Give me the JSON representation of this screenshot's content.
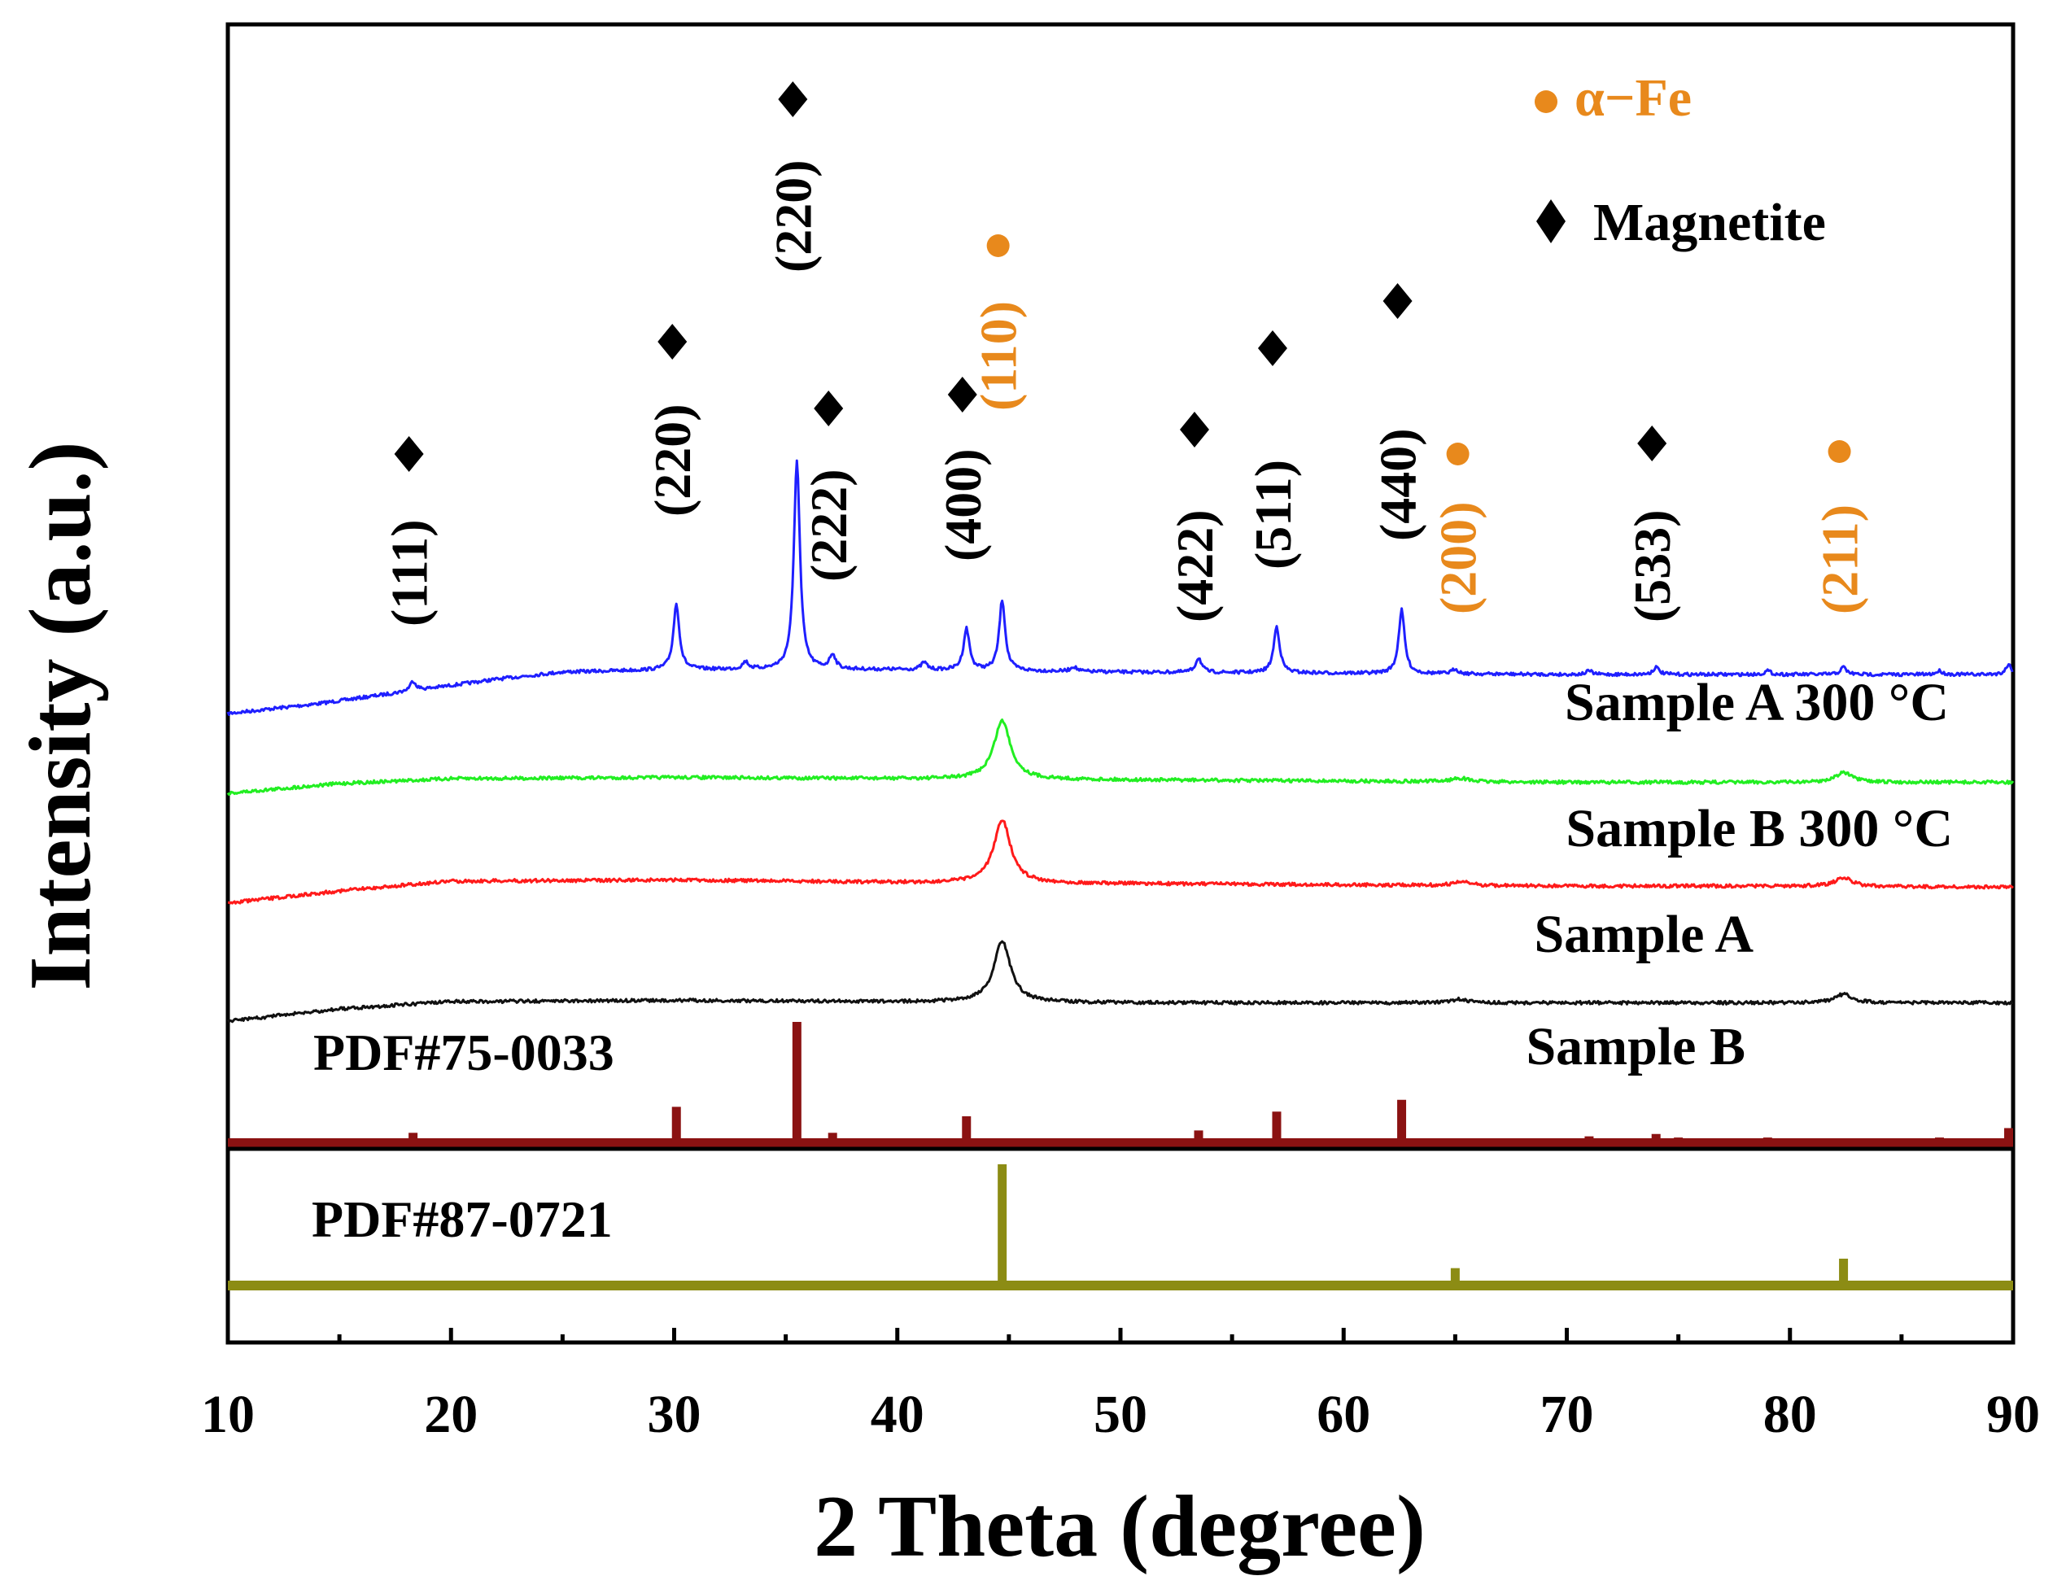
{
  "chart_data": {
    "type": "line",
    "title": "",
    "xlabel": "2 Theta (degree)",
    "ylabel": "Intensity (a.u.)",
    "xlim": [
      10,
      90
    ],
    "xticks": [
      "10",
      "20",
      "30",
      "40",
      "50",
      "60",
      "70",
      "80",
      "90"
    ],
    "grid": false,
    "legend": {
      "placement": "top-right",
      "entries": [
        {
          "marker": "circle",
          "label": "α−Fe",
          "color": "#e8891c"
        },
        {
          "marker": "diamond",
          "label": "Magnetite",
          "color": "#000000"
        }
      ]
    },
    "series": [
      {
        "name": "Sample A 300 °C",
        "color": "#1f1fff",
        "baseline": [
          [
            10,
            0.1
          ],
          [
            14,
            0.5
          ],
          [
            18,
            1.0
          ],
          [
            22,
            1.5
          ],
          [
            25,
            1.8
          ],
          [
            30,
            1.9
          ],
          [
            40,
            1.9
          ],
          [
            50,
            1.8
          ],
          [
            60,
            1.75
          ],
          [
            70,
            1.7
          ],
          [
            80,
            1.7
          ],
          [
            90,
            1.7
          ]
        ],
        "peaks": [
          [
            18.3,
            0.4
          ],
          [
            30.1,
            2.7
          ],
          [
            33.2,
            0.3
          ],
          [
            35.5,
            8.6
          ],
          [
            37.1,
            0.6
          ],
          [
            41.2,
            0.3
          ],
          [
            43.1,
            1.7
          ],
          [
            44.7,
            2.9
          ],
          [
            47.9,
            0.2
          ],
          [
            53.5,
            0.6
          ],
          [
            57.0,
            1.9
          ],
          [
            62.6,
            2.6
          ],
          [
            65.0,
            0.2
          ],
          [
            71.0,
            0.15
          ],
          [
            74.0,
            0.3
          ],
          [
            79.0,
            0.15
          ],
          [
            82.4,
            0.3
          ],
          [
            86.7,
            0.15
          ],
          [
            89.8,
            0.4
          ]
        ]
      },
      {
        "name": "Sample B 300 °C",
        "color": "#22ee22",
        "baseline": [
          [
            10,
            0.0
          ],
          [
            15,
            0.4
          ],
          [
            20,
            0.6
          ],
          [
            30,
            0.65
          ],
          [
            40,
            0.6
          ],
          [
            50,
            0.55
          ],
          [
            60,
            0.5
          ],
          [
            70,
            0.45
          ],
          [
            80,
            0.45
          ],
          [
            90,
            0.45
          ]
        ],
        "peaks": [
          [
            44.7,
            2.4
          ],
          [
            65.2,
            0.15
          ],
          [
            82.4,
            0.4
          ]
        ]
      },
      {
        "name": "Sample A",
        "color": "#ff1a1a",
        "baseline": [
          [
            10,
            0.0
          ],
          [
            15,
            0.5
          ],
          [
            20,
            0.9
          ],
          [
            30,
            0.95
          ],
          [
            40,
            0.85
          ],
          [
            50,
            0.8
          ],
          [
            60,
            0.75
          ],
          [
            70,
            0.7
          ],
          [
            80,
            0.7
          ],
          [
            90,
            0.65
          ]
        ],
        "peaks": [
          [
            44.7,
            2.6
          ],
          [
            65.3,
            0.15
          ],
          [
            82.4,
            0.35
          ]
        ]
      },
      {
        "name": "Sample B",
        "color": "#111111",
        "baseline": [
          [
            10,
            0.0
          ],
          [
            15,
            0.5
          ],
          [
            20,
            0.8
          ],
          [
            30,
            0.85
          ],
          [
            40,
            0.8
          ],
          [
            50,
            0.75
          ],
          [
            60,
            0.75
          ],
          [
            70,
            0.75
          ],
          [
            80,
            0.75
          ],
          [
            90,
            0.75
          ]
        ],
        "peaks": [
          [
            44.7,
            2.5
          ],
          [
            65.2,
            0.15
          ],
          [
            82.4,
            0.35
          ]
        ]
      }
    ],
    "references": [
      {
        "name": "PDF#75-0033",
        "color": "#8b1212",
        "sticks": [
          [
            18.3,
            6
          ],
          [
            30.1,
            28
          ],
          [
            35.5,
            100
          ],
          [
            37.1,
            6
          ],
          [
            43.1,
            20
          ],
          [
            53.5,
            8
          ],
          [
            57.0,
            24
          ],
          [
            62.6,
            34
          ],
          [
            71.0,
            3
          ],
          [
            74.0,
            5
          ],
          [
            75.0,
            2
          ],
          [
            79.0,
            2
          ],
          [
            86.7,
            2
          ],
          [
            89.8,
            10
          ]
        ]
      },
      {
        "name": "PDF#87-0721",
        "color": "#8c8c14",
        "sticks": [
          [
            44.7,
            100
          ],
          [
            65.0,
            12
          ],
          [
            82.4,
            20
          ]
        ]
      }
    ],
    "annotations": [
      {
        "x": 18.3,
        "label": "(111)",
        "marker": "diamond",
        "color": "#000000"
      },
      {
        "x": 30.1,
        "label": "(220)",
        "marker": "diamond",
        "color": "#000000"
      },
      {
        "x": 35.5,
        "label": "(220)",
        "marker": "diamond",
        "color": "#000000"
      },
      {
        "x": 37.1,
        "label": "(222)",
        "marker": "diamond",
        "color": "#000000"
      },
      {
        "x": 43.1,
        "label": "(400)",
        "marker": "diamond",
        "color": "#000000"
      },
      {
        "x": 44.7,
        "label": "(110)",
        "marker": "circle",
        "color": "#e8891c"
      },
      {
        "x": 53.5,
        "label": "(422)",
        "marker": "diamond",
        "color": "#000000"
      },
      {
        "x": 57.0,
        "label": "(511)",
        "marker": "diamond",
        "color": "#000000"
      },
      {
        "x": 62.6,
        "label": "(440)",
        "marker": "diamond",
        "color": "#000000"
      },
      {
        "x": 65.3,
        "label": "(200)",
        "marker": "circle",
        "color": "#e8891c"
      },
      {
        "x": 74.0,
        "label": "(533)",
        "marker": "diamond",
        "color": "#000000"
      },
      {
        "x": 82.4,
        "label": "(211)",
        "marker": "circle",
        "color": "#e8891c"
      }
    ]
  }
}
